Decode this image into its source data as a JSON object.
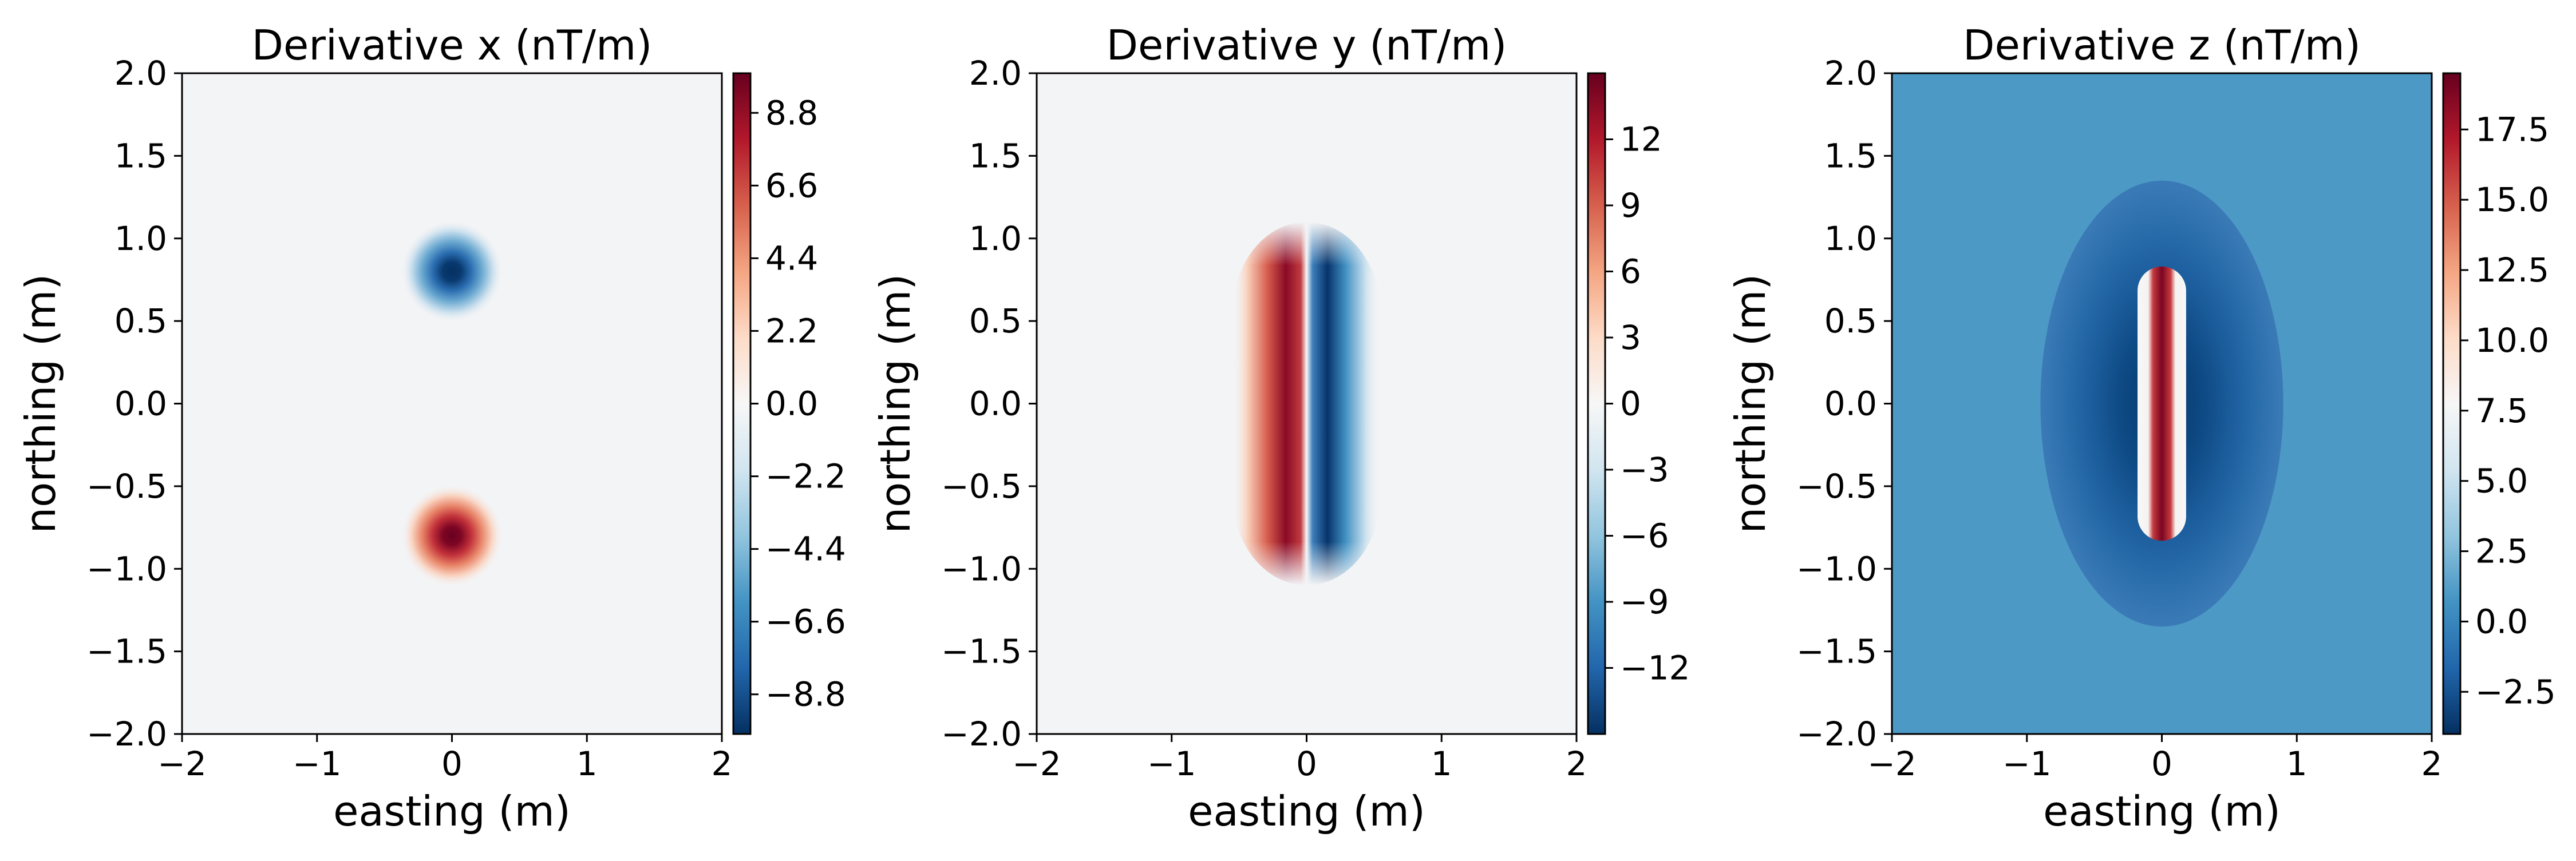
{
  "chart_data": [
    {
      "type": "heatmap",
      "title": "Derivative x (nT/m)",
      "xlabel": "easting (m)",
      "ylabel": "northing (m)",
      "xlim": [
        -2,
        2
      ],
      "ylim": [
        -2,
        2
      ],
      "xticks": [
        "−2",
        "−1",
        "0",
        "1",
        "2"
      ],
      "yticks": [
        "2.0",
        "1.5",
        "1.0",
        "0.5",
        "0.0",
        "−0.5",
        "−1.0",
        "−1.5",
        "−2.0"
      ],
      "colorbar": {
        "min": -10,
        "max": 10,
        "ticks": [
          8.8,
          6.6,
          4.4,
          2.2,
          0.0,
          -2.2,
          -4.4,
          -6.6,
          -8.8
        ],
        "tick_labels": [
          "8.8",
          "6.6",
          "4.4",
          "2.2",
          "0.0",
          "−2.2",
          "−4.4",
          "−6.6",
          "−8.8"
        ],
        "colormap": "RdBu_r"
      },
      "features": [
        {
          "kind": "blob",
          "x": 0,
          "y": 0.8,
          "value": -10
        },
        {
          "kind": "blob",
          "x": 0,
          "y": -0.8,
          "value": 10
        }
      ]
    },
    {
      "type": "heatmap",
      "title": "Derivative y (nT/m)",
      "xlabel": "easting (m)",
      "ylabel": "northing (m)",
      "xlim": [
        -2,
        2
      ],
      "ylim": [
        -2,
        2
      ],
      "xticks": [
        "−2",
        "−1",
        "0",
        "1",
        "2"
      ],
      "yticks": [
        "2.0",
        "1.5",
        "1.0",
        "0.5",
        "0.0",
        "−0.5",
        "−1.0",
        "−1.5",
        "−2.0"
      ],
      "colorbar": {
        "min": -15,
        "max": 15,
        "ticks": [
          12,
          9,
          6,
          3,
          0,
          -3,
          -6,
          -9,
          -12
        ],
        "tick_labels": [
          "12",
          "9",
          "6",
          "3",
          "0",
          "−3",
          "−6",
          "−9",
          "−12"
        ],
        "colormap": "RdBu_r"
      },
      "features": [
        {
          "kind": "strip",
          "x": -0.15,
          "y_range": [
            -0.8,
            0.8
          ],
          "value": 15
        },
        {
          "kind": "strip",
          "x": 0.15,
          "y_range": [
            -0.8,
            0.8
          ],
          "value": -15
        }
      ]
    },
    {
      "type": "heatmap",
      "title": "Derivative z (nT/m)",
      "xlabel": "easting (m)",
      "ylabel": "northing (m)",
      "xlim": [
        -2,
        2
      ],
      "ylim": [
        -2,
        2
      ],
      "xticks": [
        "−2",
        "−1",
        "0",
        "1",
        "2"
      ],
      "yticks": [
        "2.0",
        "1.5",
        "1.0",
        "0.5",
        "0.0",
        "−0.5",
        "−1.0",
        "−1.5",
        "−2.0"
      ],
      "colorbar": {
        "min": -4,
        "max": 19.5,
        "ticks": [
          17.5,
          15.0,
          12.5,
          10.0,
          7.5,
          5.0,
          2.5,
          0.0,
          -2.5
        ],
        "tick_labels": [
          "17.5",
          "15.0",
          "12.5",
          "10.0",
          "7.5",
          "5.0",
          "2.5",
          "0.0",
          "−2.5"
        ],
        "colormap": "RdBu_r"
      },
      "background_value": 1.0,
      "features": [
        {
          "kind": "halo",
          "x": 0,
          "y": 0,
          "value": -3
        },
        {
          "kind": "bar",
          "x": 0,
          "y_range": [
            -0.75,
            0.75
          ],
          "value": 19.5
        }
      ]
    }
  ]
}
